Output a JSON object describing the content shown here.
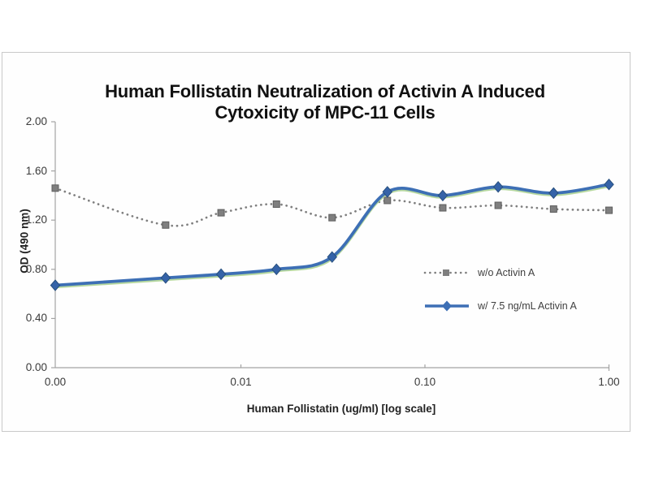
{
  "chart_data": {
    "type": "line",
    "title": "Human Follistatin Neutralization of Activin A Induced Cytoxicity of MPC-11 Cells",
    "title_lines": [
      "Human Follistatin Neutralization of Activin A Induced",
      "Cytoxicity of MPC-11 Cells"
    ],
    "xlabel": "Human Follistatin (ug/ml) [log scale]",
    "ylabel": "OD (490 nm)",
    "x_scale": "log",
    "grid": false,
    "legend_position": "inside-right",
    "ylim": [
      0.0,
      2.0
    ],
    "y_ticks": {
      "values": [
        2.0,
        1.6,
        1.2,
        0.8,
        0.4,
        0.0
      ],
      "labels": [
        "2.00",
        "1.60",
        "1.20",
        "0.80",
        "0.40",
        "0.00"
      ]
    },
    "x_ticks": {
      "values": [
        0,
        0.01,
        0.1,
        1.0
      ],
      "labels": [
        "0.00",
        "0.01",
        "0.10",
        "1.00"
      ]
    },
    "x": [
      0,
      0.0039,
      0.0078,
      0.0156,
      0.0313,
      0.0625,
      0.125,
      0.25,
      0.5,
      1.0
    ],
    "series": [
      {
        "name": "w/o Activin A",
        "style": "dotted",
        "marker": "square",
        "color": "#7f7f7f",
        "marker_stroke": "#5e5e5e",
        "values": [
          1.46,
          1.16,
          1.26,
          1.33,
          1.22,
          1.36,
          1.3,
          1.32,
          1.29,
          1.28
        ]
      },
      {
        "name": "w/ 7.5 ng/mL Activin A",
        "style": "solid",
        "marker": "diamond",
        "color": "#3d6fb5",
        "marker_fill": "#3563a8",
        "marker_stroke": "#28507e",
        "glow_color": "#a9d18e",
        "values": [
          0.67,
          0.73,
          0.76,
          0.8,
          0.9,
          1.43,
          1.4,
          1.47,
          1.42,
          1.49
        ]
      }
    ]
  }
}
